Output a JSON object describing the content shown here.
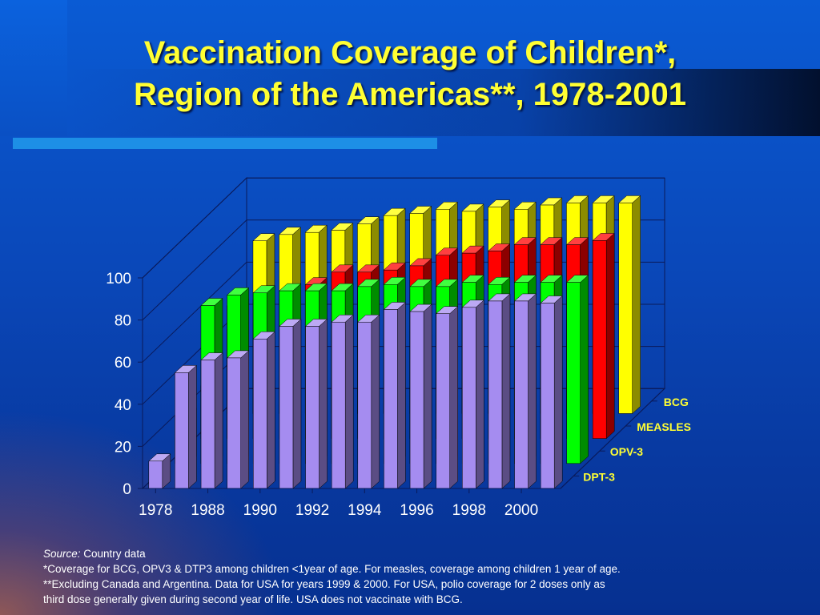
{
  "slide": {
    "title_line1": "Vaccination Coverage of Children*,",
    "title_line2": "Region of the Americas**, 1978-2001"
  },
  "colors": {
    "BCG": "#ffff00",
    "MEASLES": "#ff0000",
    "OPV-3": "#00ff00",
    "DPT-3": "#a58cf0",
    "title": "#ffff33"
  },
  "chart_data": {
    "type": "bar",
    "style": "3d-clustered-depth",
    "x": [
      1978,
      1987,
      1988,
      1989,
      1990,
      1991,
      1992,
      1993,
      1994,
      1995,
      1996,
      1997,
      1998,
      1999,
      2000,
      2001
    ],
    "x_tick_labels": [
      "1978",
      "1988",
      "1990",
      "1992",
      "1994",
      "1996",
      "1998",
      "2000"
    ],
    "ylim": [
      0,
      100
    ],
    "yticks": [
      0,
      20,
      40,
      60,
      80,
      100
    ],
    "grid": true,
    "series": [
      {
        "name": "DPT-3",
        "values": [
          13,
          55,
          61,
          62,
          71,
          77,
          77,
          79,
          79,
          85,
          84,
          83,
          86,
          89,
          89,
          88
        ]
      },
      {
        "name": "OPV-3",
        "values": [
          23,
          75,
          80,
          81,
          82,
          82,
          82,
          84,
          85,
          84,
          84,
          86,
          85,
          86,
          86,
          86
        ]
      },
      {
        "name": "MEASLES",
        "values": [
          25,
          63,
          66,
          66,
          73,
          79,
          79,
          80,
          82,
          87,
          88,
          89,
          92,
          92,
          92,
          94
        ]
      },
      {
        "name": "BCG",
        "values": [
          40,
          82,
          85,
          86,
          87,
          90,
          94,
          95,
          97,
          96,
          98,
          97,
          99,
          100,
          100,
          100
        ]
      }
    ],
    "depth_labels": [
      "DPT-3",
      "OPV-3",
      "MEASLES",
      "BCG"
    ]
  },
  "notes": {
    "source_label": "Source:",
    "source_text": " Country data",
    "line1": "*Coverage for BCG, OPV3 & DTP3 among children <1year of age. For measles, coverage among children 1 year of age.",
    "line2": "**Excluding Canada and Argentina. Data for USA for years 1999 & 2000. For USA, polio coverage for 2 doses only as",
    "line3": "third dose generally given during second year of life. USA does not vaccinate with BCG."
  }
}
